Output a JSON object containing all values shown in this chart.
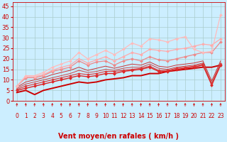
{
  "background_color": "#cceeff",
  "grid_color": "#aacccc",
  "xlim": [
    -0.5,
    23.5
  ],
  "ylim": [
    0,
    47
  ],
  "yticks": [
    0,
    5,
    10,
    15,
    20,
    25,
    30,
    35,
    40,
    45
  ],
  "xticks": [
    0,
    1,
    2,
    3,
    4,
    5,
    6,
    7,
    8,
    9,
    10,
    11,
    12,
    13,
    14,
    15,
    16,
    17,
    18,
    19,
    20,
    21,
    22,
    23
  ],
  "xlabel": "Vent moyen/en rafales ( km/h )",
  "xlabel_color": "#cc0000",
  "xlabel_fontsize": 7,
  "tick_color": "#cc0000",
  "ytick_fontsize": 6,
  "xtick_fontsize": 5.5,
  "arrow_color": "#cc0000",
  "series": [
    {
      "x": [
        0,
        1,
        2,
        3,
        4,
        5,
        6,
        7,
        8,
        9,
        10,
        11,
        12,
        13,
        14,
        15,
        16,
        17,
        18,
        19,
        20,
        21,
        22,
        23
      ],
      "y": [
        4.0,
        5.0,
        3.0,
        5.0,
        6.0,
        7.0,
        8.0,
        9.0,
        8.5,
        9.0,
        10.0,
        10.5,
        11.0,
        12.0,
        12.0,
        13.0,
        13.0,
        14.0,
        14.5,
        15.0,
        15.5,
        16.0,
        16.0,
        17.0
      ],
      "color": "#cc0000",
      "lw": 1.4,
      "marker": null,
      "ms": 0
    },
    {
      "x": [
        0,
        1,
        2,
        3,
        4,
        5,
        6,
        7,
        8,
        9,
        10,
        11,
        12,
        13,
        14,
        15,
        16,
        17,
        18,
        19,
        20,
        21,
        22,
        23
      ],
      "y": [
        5.0,
        6.0,
        7.0,
        8.0,
        9.0,
        10.0,
        11.0,
        12.0,
        11.5,
        12.0,
        13.0,
        13.0,
        14.0,
        14.5,
        15.0,
        16.0,
        14.0,
        14.0,
        15.0,
        15.5,
        16.0,
        17.0,
        7.5,
        17.0
      ],
      "color": "#dd2222",
      "lw": 1.0,
      "marker": "D",
      "ms": 2.0
    },
    {
      "x": [
        0,
        1,
        2,
        3,
        4,
        5,
        6,
        7,
        8,
        9,
        10,
        11,
        12,
        13,
        14,
        15,
        16,
        17,
        18,
        19,
        20,
        21,
        22,
        23
      ],
      "y": [
        5.5,
        7.0,
        8.0,
        9.0,
        10.0,
        11.0,
        12.0,
        13.0,
        12.5,
        13.0,
        14.0,
        14.0,
        14.5,
        15.0,
        15.5,
        16.5,
        14.5,
        14.5,
        15.5,
        16.0,
        16.5,
        17.5,
        8.0,
        17.5
      ],
      "color": "#dd3333",
      "lw": 0.8,
      "marker": "D",
      "ms": 1.8
    },
    {
      "x": [
        0,
        1,
        2,
        3,
        4,
        5,
        6,
        7,
        8,
        9,
        10,
        11,
        12,
        13,
        14,
        15,
        16,
        17,
        18,
        19,
        20,
        21,
        22,
        23
      ],
      "y": [
        6.0,
        8.0,
        9.0,
        10.0,
        11.0,
        12.0,
        13.0,
        14.5,
        13.5,
        14.0,
        15.0,
        14.5,
        15.5,
        16.0,
        16.0,
        17.5,
        15.5,
        15.0,
        16.0,
        16.5,
        17.0,
        18.0,
        8.5,
        18.0
      ],
      "color": "#cc4444",
      "lw": 0.7,
      "marker": null,
      "ms": 0
    },
    {
      "x": [
        0,
        1,
        2,
        3,
        4,
        5,
        6,
        7,
        8,
        9,
        10,
        11,
        12,
        13,
        14,
        15,
        16,
        17,
        18,
        19,
        20,
        21,
        22,
        23
      ],
      "y": [
        6.5,
        9.0,
        10.0,
        11.0,
        12.5,
        13.5,
        14.5,
        16.0,
        14.5,
        15.5,
        16.5,
        15.5,
        16.5,
        17.5,
        17.0,
        18.5,
        16.5,
        16.0,
        17.0,
        17.5,
        18.0,
        19.0,
        9.5,
        19.0
      ],
      "color": "#cc3333",
      "lw": 0.7,
      "marker": null,
      "ms": 0
    },
    {
      "x": [
        0,
        1,
        2,
        3,
        4,
        5,
        6,
        7,
        8,
        9,
        10,
        11,
        12,
        13,
        14,
        15,
        16,
        17,
        18,
        19,
        20,
        21,
        22,
        23
      ],
      "y": [
        7.0,
        11.0,
        11.0,
        12.0,
        14.0,
        15.0,
        16.0,
        19.0,
        17.0,
        18.5,
        19.0,
        17.0,
        19.0,
        20.0,
        19.0,
        21.0,
        19.5,
        19.0,
        20.0,
        21.0,
        22.0,
        23.0,
        23.0,
        28.0
      ],
      "color": "#ee8888",
      "lw": 0.9,
      "marker": "D",
      "ms": 2.0
    },
    {
      "x": [
        0,
        1,
        2,
        3,
        4,
        5,
        6,
        7,
        8,
        9,
        10,
        11,
        12,
        13,
        14,
        15,
        16,
        17,
        18,
        19,
        20,
        21,
        22,
        23
      ],
      "y": [
        7.0,
        11.5,
        11.5,
        12.5,
        14.5,
        16.0,
        17.0,
        20.0,
        18.0,
        19.5,
        21.0,
        19.0,
        21.0,
        23.0,
        22.0,
        24.5,
        24.0,
        23.5,
        24.5,
        25.0,
        26.0,
        27.0,
        26.5,
        29.5
      ],
      "color": "#ffaaaa",
      "lw": 0.9,
      "marker": "D",
      "ms": 2.0
    },
    {
      "x": [
        0,
        1,
        2,
        3,
        4,
        5,
        6,
        7,
        8,
        9,
        10,
        11,
        12,
        13,
        14,
        15,
        16,
        17,
        18,
        19,
        20,
        21,
        22,
        23
      ],
      "y": [
        7.0,
        12.0,
        12.0,
        13.5,
        16.0,
        17.5,
        19.0,
        23.0,
        20.0,
        22.0,
        24.0,
        22.0,
        24.5,
        27.5,
        26.0,
        29.5,
        29.0,
        28.0,
        29.5,
        30.5,
        24.5,
        23.0,
        23.5,
        41.0
      ],
      "color": "#ffbbbb",
      "lw": 0.9,
      "marker": "D",
      "ms": 2.0
    }
  ]
}
